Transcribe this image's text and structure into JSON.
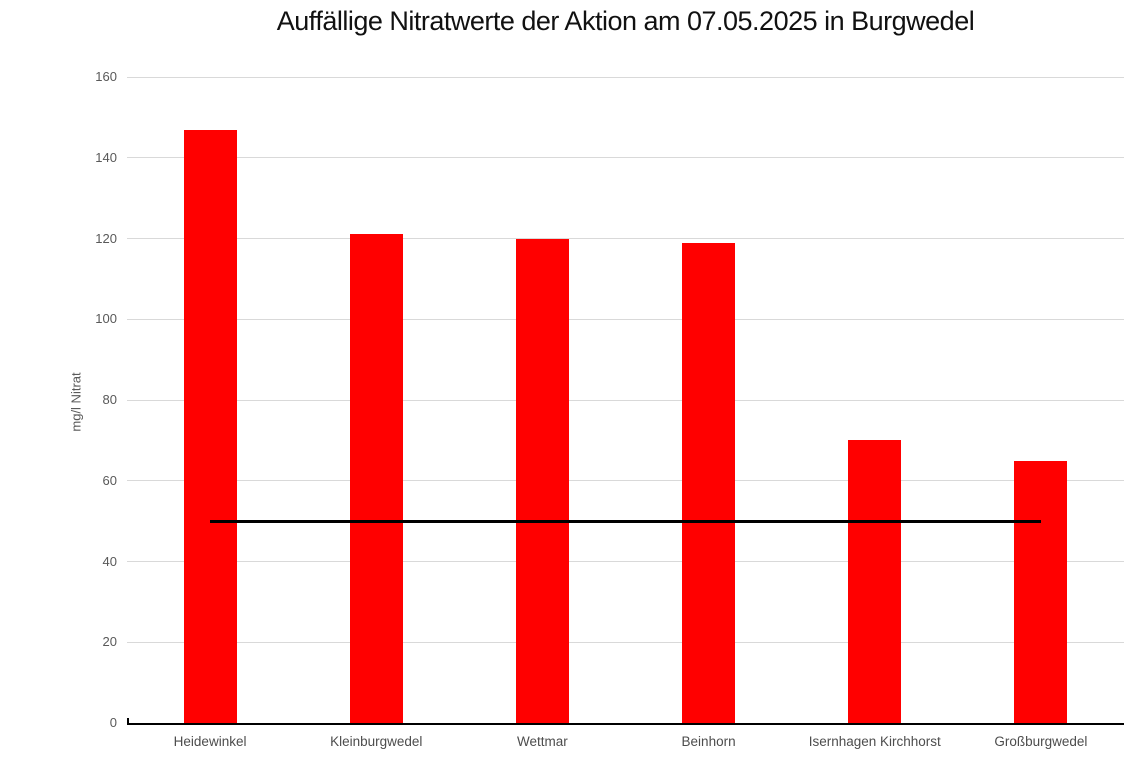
{
  "chart_data": {
    "type": "bar",
    "title": "Auffällige Nitratwerte der Aktion am 07.05.2025 in Burgwedel",
    "xlabel": "",
    "ylabel": "mg/l Nitrat",
    "categories": [
      "Heidewinkel",
      "Kleinburgwedel",
      "Wettmar",
      "Beinhorn",
      "Isernhagen Kirchhorst",
      "Großburgwedel"
    ],
    "values": [
      147,
      121,
      120,
      119,
      70,
      65
    ],
    "limit_line_value": 50,
    "ylim": [
      0,
      160
    ],
    "yticks": [
      0,
      20,
      40,
      60,
      80,
      100,
      120,
      140,
      160
    ],
    "grid": true,
    "legend": false,
    "colors": {
      "bar": "#ff0000",
      "limit_line": "#000000",
      "gridline": "#d9d9d9",
      "axis_line": "#000000",
      "tick_text": "#595959",
      "title_text": "#111111"
    }
  }
}
